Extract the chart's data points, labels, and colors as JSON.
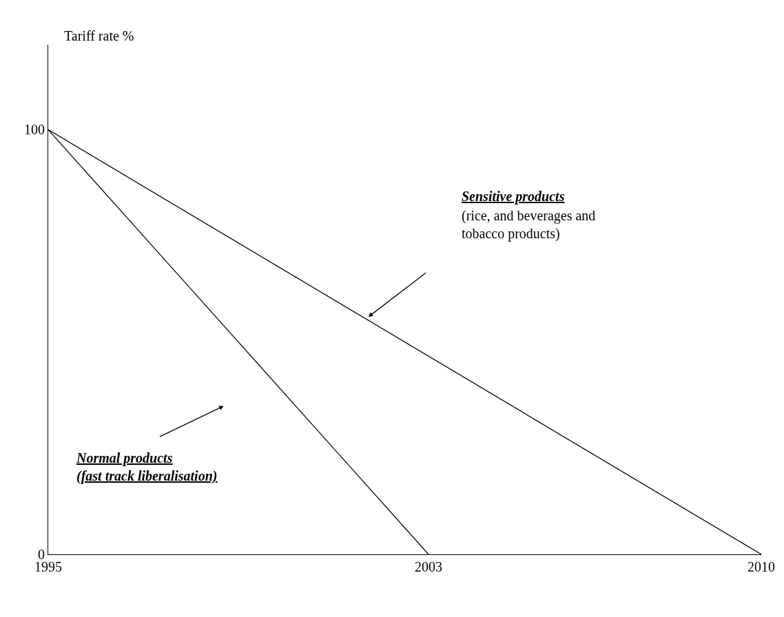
{
  "chart_data": {
    "type": "line",
    "ylabel": "Tariff rate %",
    "xlim": [
      1995,
      2010
    ],
    "xticks": [
      1995,
      2003,
      2010
    ],
    "ylim": [
      0,
      120
    ],
    "yticks": [
      0,
      100
    ],
    "series": [
      {
        "color": "#000000",
        "x": [
          1995,
          2003
        ],
        "values": [
          100,
          0
        ]
      },
      {
        "color": "#000000",
        "x": [
          1995,
          2010
        ],
        "values": [
          100,
          0
        ]
      }
    ],
    "annotations": [
      "Sensitive products",
      "(rice, and beverages and\ntobacco products)",
      "Normal products\n(fast track liberalisation)"
    ],
    "marker": "none",
    "line_style": "solid"
  }
}
